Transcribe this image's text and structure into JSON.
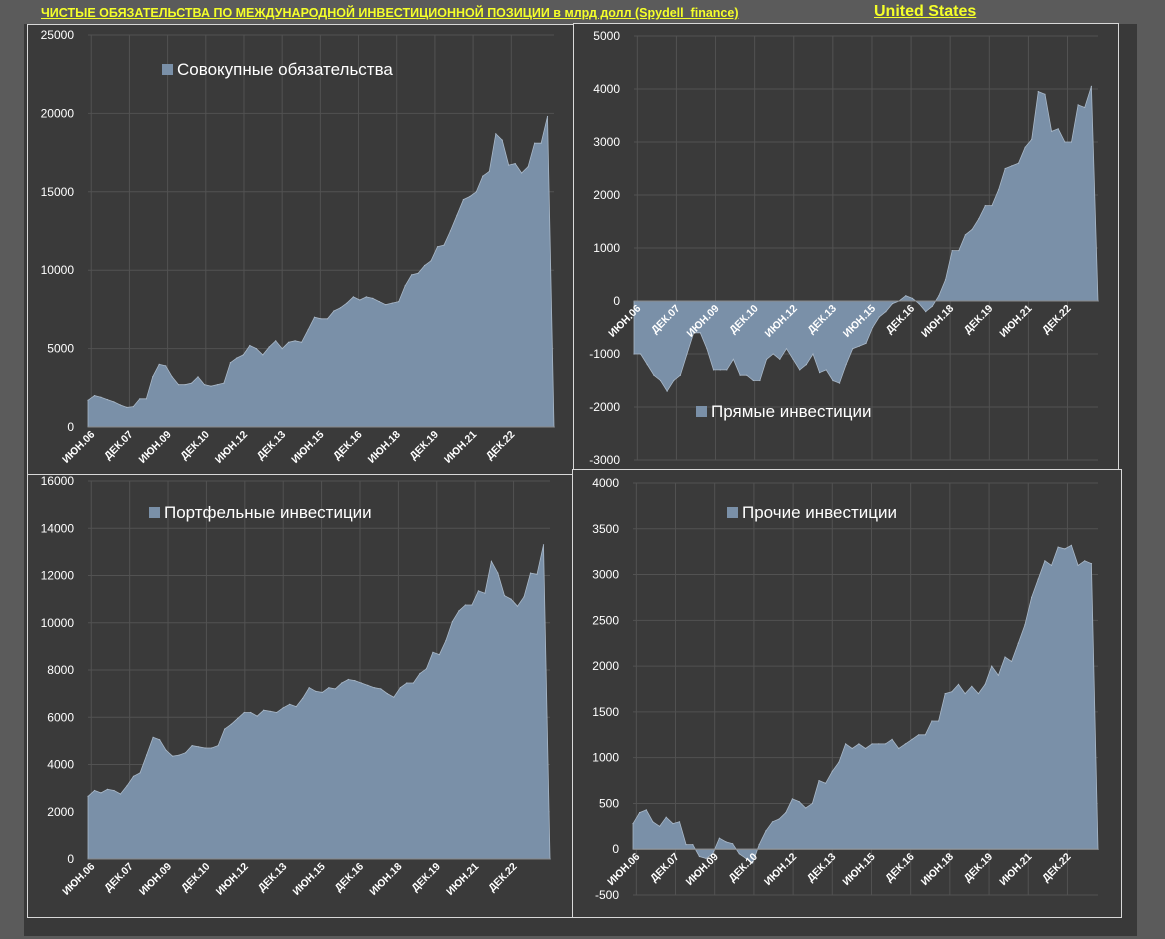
{
  "header": {
    "title": "ЧИСТЫЕ ОБЯЗАТЕЛЬСТВА ПО МЕЖДУНАРОДНОЙ ИНВЕСТИЦИОННОЙ ПОЗИЦИИ в млрд долл (Spydell_finance)",
    "country": "United States"
  },
  "colors": {
    "area": "#7a90a8",
    "area_edge": "#a9b8c8",
    "axis_text": "#ffffff",
    "grid": "#525252",
    "title": "#f5ff2a"
  },
  "chart_data": [
    {
      "id": "total",
      "type": "area",
      "legend": "Совокупные обязательства",
      "legend_placement": "top",
      "ylim": [
        0,
        25000
      ],
      "yticks": [
        0,
        5000,
        10000,
        15000,
        20000,
        25000
      ],
      "tick_labels": [
        "ИЮН.06",
        "ДЕК.07",
        "ИЮН.09",
        "ДЕК.10",
        "ИЮН.12",
        "ДЕК.13",
        "ИЮН.15",
        "ДЕК.16",
        "ИЮН.18",
        "ДЕК.19",
        "ИЮН.21",
        "ДЕК.22"
      ],
      "values": [
        1700,
        2000,
        1900,
        1750,
        1600,
        1400,
        1250,
        1300,
        1800,
        1800,
        3200,
        4000,
        3900,
        3200,
        2700,
        2700,
        2800,
        3200,
        2700,
        2600,
        2700,
        2800,
        4100,
        4400,
        4600,
        5200,
        5000,
        4600,
        5100,
        5500,
        5000,
        5400,
        5500,
        5400,
        6200,
        7000,
        6900,
        6900,
        7400,
        7600,
        7900,
        8300,
        8100,
        8300,
        8200,
        8000,
        7800,
        7900,
        8000,
        9000,
        9700,
        9800,
        10300,
        10600,
        11500,
        11600,
        12500,
        13500,
        14500,
        14700,
        15000,
        16000,
        16300,
        18700,
        18300,
        16700,
        16800,
        16200,
        16600,
        18100,
        18100,
        19800,
        0
      ]
    },
    {
      "id": "direct",
      "type": "area",
      "legend": "Прямые инвестиции",
      "legend_placement": "bottom",
      "ylim": [
        -3000,
        5000
      ],
      "yticks": [
        -3000,
        -2000,
        -1000,
        0,
        1000,
        2000,
        3000,
        4000,
        5000
      ],
      "tick_labels": [
        "ИЮН.06",
        "ДЕК.07",
        "ИЮН.09",
        "ДЕК.10",
        "ИЮН.12",
        "ДЕК.13",
        "ИЮН.15",
        "ДЕК.16",
        "ИЮН.18",
        "ДЕК.19",
        "ИЮН.21",
        "ДЕК.22"
      ],
      "values": [
        -1000,
        -1000,
        -1200,
        -1400,
        -1500,
        -1700,
        -1500,
        -1400,
        -1000,
        -600,
        -600,
        -900,
        -1300,
        -1300,
        -1300,
        -1100,
        -1400,
        -1400,
        -1500,
        -1500,
        -1100,
        -1000,
        -1100,
        -900,
        -1100,
        -1300,
        -1200,
        -1000,
        -1350,
        -1300,
        -1500,
        -1550,
        -1200,
        -900,
        -850,
        -800,
        -500,
        -300,
        -200,
        -50,
        0,
        100,
        50,
        -50,
        -200,
        -100,
        100,
        400,
        950,
        950,
        1250,
        1350,
        1550,
        1800,
        1800,
        2100,
        2500,
        2550,
        2600,
        2900,
        3050,
        3950,
        3900,
        3200,
        3250,
        3000,
        3000,
        3700,
        3650,
        4050,
        0
      ]
    },
    {
      "id": "portfolio",
      "type": "area",
      "legend": "Портфельные инвестиции",
      "legend_placement": "top",
      "ylim": [
        0,
        16000
      ],
      "yticks": [
        0,
        2000,
        4000,
        6000,
        8000,
        10000,
        12000,
        14000,
        16000
      ],
      "tick_labels": [
        "ИЮН.06",
        "ДЕК.07",
        "ИЮН.09",
        "ДЕК.10",
        "ИЮН.12",
        "ДЕК.13",
        "ИЮН.15",
        "ДЕК.16",
        "ИЮН.18",
        "ДЕК.19",
        "ИЮН.21",
        "ДЕК.22"
      ],
      "values": [
        2650,
        2900,
        2800,
        2950,
        2900,
        2750,
        3100,
        3500,
        3650,
        4400,
        5150,
        5050,
        4600,
        4350,
        4400,
        4500,
        4800,
        4750,
        4700,
        4700,
        4800,
        5500,
        5700,
        5950,
        6200,
        6200,
        6050,
        6300,
        6250,
        6200,
        6400,
        6550,
        6450,
        6800,
        7250,
        7100,
        7050,
        7250,
        7200,
        7450,
        7600,
        7550,
        7450,
        7350,
        7250,
        7200,
        7000,
        6850,
        7250,
        7450,
        7450,
        7850,
        8050,
        8750,
        8650,
        9250,
        10050,
        10500,
        10750,
        10750,
        11350,
        11250,
        12600,
        12100,
        11150,
        11000,
        10700,
        11100,
        12100,
        12050,
        13300,
        0
      ]
    },
    {
      "id": "other",
      "type": "area",
      "legend": "Прочие инвестиции",
      "legend_placement": "top",
      "ylim": [
        -500,
        4000
      ],
      "yticks": [
        -500,
        0,
        500,
        1000,
        1500,
        2000,
        2500,
        3000,
        3500,
        4000
      ],
      "tick_labels": [
        "ИЮН.06",
        "ДЕК.07",
        "ИЮН.09",
        "ДЕК.10",
        "ИЮН.12",
        "ДЕК.13",
        "ИЮН.15",
        "ДЕК.16",
        "ИЮН.18",
        "ДЕК.19",
        "ИЮН.21",
        "ДЕК.22"
      ],
      "values": [
        280,
        400,
        430,
        300,
        250,
        350,
        280,
        300,
        50,
        50,
        -80,
        -100,
        -50,
        120,
        80,
        60,
        -50,
        -100,
        -150,
        50,
        200,
        300,
        330,
        400,
        550,
        520,
        450,
        500,
        750,
        720,
        850,
        950,
        1150,
        1100,
        1150,
        1100,
        1150,
        1150,
        1150,
        1200,
        1100,
        1150,
        1200,
        1250,
        1250,
        1400,
        1400,
        1700,
        1720,
        1800,
        1700,
        1780,
        1700,
        1800,
        2000,
        1900,
        2100,
        2050,
        2250,
        2450,
        2750,
        2950,
        3150,
        3100,
        3300,
        3280,
        3320,
        3100,
        3150,
        3120,
        0
      ]
    }
  ]
}
